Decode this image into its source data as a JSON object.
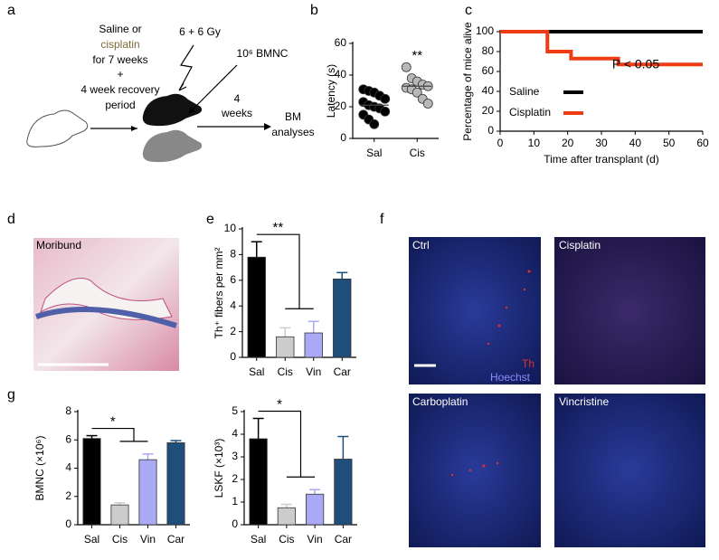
{
  "panel_letters": {
    "a": "a",
    "b": "b",
    "c": "c",
    "d": "d",
    "e": "e",
    "f": "f",
    "g": "g"
  },
  "diagram": {
    "treatment_1": "Saline or",
    "treatment_2": "cisplatin",
    "treatment_3": "for 7 weeks",
    "treatment_4": "+",
    "treatment_5": "4 week recovery",
    "treatment_6": "period",
    "irradiation": "6 + 6 Gy",
    "transplant": "10⁶ BMNC",
    "interval_1": "4",
    "interval_2": "weeks",
    "readout_1": "BM",
    "readout_2": "analyses"
  },
  "histology": {
    "label": "Moribund"
  },
  "immunostaining": {
    "panels": [
      "Ctrl",
      "Cisplatin",
      "Carboplatin",
      "Vincristine"
    ],
    "stain_1": "Th",
    "stain_2": "Hoechst"
  },
  "chart_data": [
    {
      "type": "dotplot",
      "ylabel": "Latency (s)",
      "categories": [
        "Sal",
        "Cis"
      ],
      "colors": [
        "#000000",
        "#b8b8b8"
      ],
      "values": [
        [
          31,
          30,
          29,
          27,
          25,
          23,
          21,
          20,
          19,
          17,
          15,
          12,
          9
        ],
        [
          45,
          38,
          36,
          34,
          33,
          32,
          31,
          29,
          25,
          22
        ]
      ],
      "medians": [
        21,
        33
      ],
      "annotation": "**",
      "ylim": [
        0,
        60
      ],
      "yticks": [
        0,
        20,
        40,
        60
      ]
    },
    {
      "type": "line",
      "step": true,
      "ylabel": "Percentage of mice alive",
      "xlabel": "Time after transplant (d)",
      "xlim": [
        0,
        60
      ],
      "xticks": [
        0,
        10,
        20,
        30,
        40,
        50,
        60
      ],
      "ylim": [
        0,
        100
      ],
      "yticks": [
        0,
        20,
        40,
        60,
        80,
        100
      ],
      "series": [
        {
          "name": "Saline",
          "color": "#000000",
          "x": [
            0,
            60
          ],
          "values": [
            100,
            100
          ]
        },
        {
          "name": "Cisplatin",
          "color": "#f03c14",
          "x": [
            0,
            14,
            21,
            35,
            60
          ],
          "values": [
            100,
            80,
            73,
            67,
            67
          ]
        }
      ],
      "annotation": "P < 0.05"
    },
    {
      "type": "bar",
      "ylabel": "Th⁺ fibers per mm²",
      "categories": [
        "Sal",
        "Cis",
        "Vin",
        "Car"
      ],
      "colors": [
        "#000000",
        "#cccccc",
        "#a9a9f5",
        "#1f4e7a"
      ],
      "values": [
        7.8,
        1.6,
        1.9,
        6.1
      ],
      "errors": [
        1.2,
        0.7,
        0.9,
        0.5
      ],
      "ylim": [
        0,
        10
      ],
      "yticks": [
        0,
        2,
        4,
        6,
        8,
        10
      ],
      "annotation": "**"
    },
    {
      "type": "bar",
      "ylabel": "BMNC (×10⁶)",
      "categories": [
        "Sal",
        "Cis",
        "Vin",
        "Car"
      ],
      "colors": [
        "#000000",
        "#cccccc",
        "#a9a9f5",
        "#1f4e7a"
      ],
      "values": [
        6.1,
        1.4,
        4.6,
        5.8
      ],
      "errors": [
        0.2,
        0.15,
        0.4,
        0.15
      ],
      "ylim": [
        0,
        8
      ],
      "yticks": [
        0,
        2,
        4,
        6,
        8
      ],
      "annotation": "*"
    },
    {
      "type": "bar",
      "ylabel": "LSKF (×10³)",
      "categories": [
        "Sal",
        "Cis",
        "Vin",
        "Car"
      ],
      "colors": [
        "#000000",
        "#cccccc",
        "#a9a9f5",
        "#1f4e7a"
      ],
      "values": [
        3.8,
        0.75,
        1.35,
        2.9
      ],
      "errors": [
        0.9,
        0.15,
        0.2,
        1.0
      ],
      "ylim": [
        0,
        5
      ],
      "yticks": [
        0,
        1,
        2,
        3,
        4,
        5
      ],
      "annotation": "*"
    }
  ]
}
